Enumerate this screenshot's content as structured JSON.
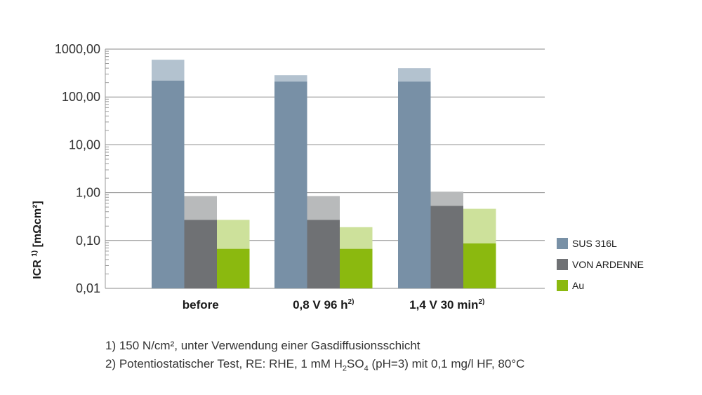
{
  "chart_data": {
    "type": "bar",
    "title": "",
    "ylabel": "ICR",
    "ylabel_sup": "1)",
    "ylabel_unit": "[mΩcm²]",
    "yscale": "log",
    "ylim": [
      0.01,
      1000
    ],
    "yticks": [
      0.01,
      0.1,
      1,
      10,
      100,
      1000
    ],
    "ytick_labels": [
      "0,01",
      "0,10",
      "1,00",
      "10,00",
      "100,00",
      "1000,00"
    ],
    "categories": [
      {
        "label": "before",
        "sup": ""
      },
      {
        "label": "0,8 V 96 h",
        "sup": "2)"
      },
      {
        "label": "1,4 V 30 min",
        "sup": "2)"
      }
    ],
    "series": [
      {
        "name": "SUS 316L",
        "color": "#7890a6",
        "range_color": "#b3c2cf",
        "values": [
          220,
          210,
          210
        ],
        "upper": [
          600,
          285,
          400
        ]
      },
      {
        "name": "VON ARDENNE",
        "color": "#6f7174",
        "range_color": "#b8babb",
        "values": [
          0.27,
          0.27,
          0.53
        ],
        "upper": [
          0.85,
          0.85,
          1.05
        ]
      },
      {
        "name": "Au",
        "color": "#8bb90f",
        "range_color": "#cde19b",
        "values": [
          0.067,
          0.067,
          0.087
        ],
        "upper": [
          0.27,
          0.19,
          0.46
        ]
      }
    ],
    "grid": true,
    "legend_position": "right"
  },
  "footnotes": {
    "note1": "1) 150 N/cm², unter Verwendung einer Gasdiffusionsschicht",
    "note2_a": "2) Potentiostatischer Test, RE: RHE, 1 mM H",
    "note2_sub1": "2",
    "note2_b": "SO",
    "note2_sub2": "4",
    "note2_c": " (pH=3) mit 0,1 mg/l HF, 80°C"
  }
}
